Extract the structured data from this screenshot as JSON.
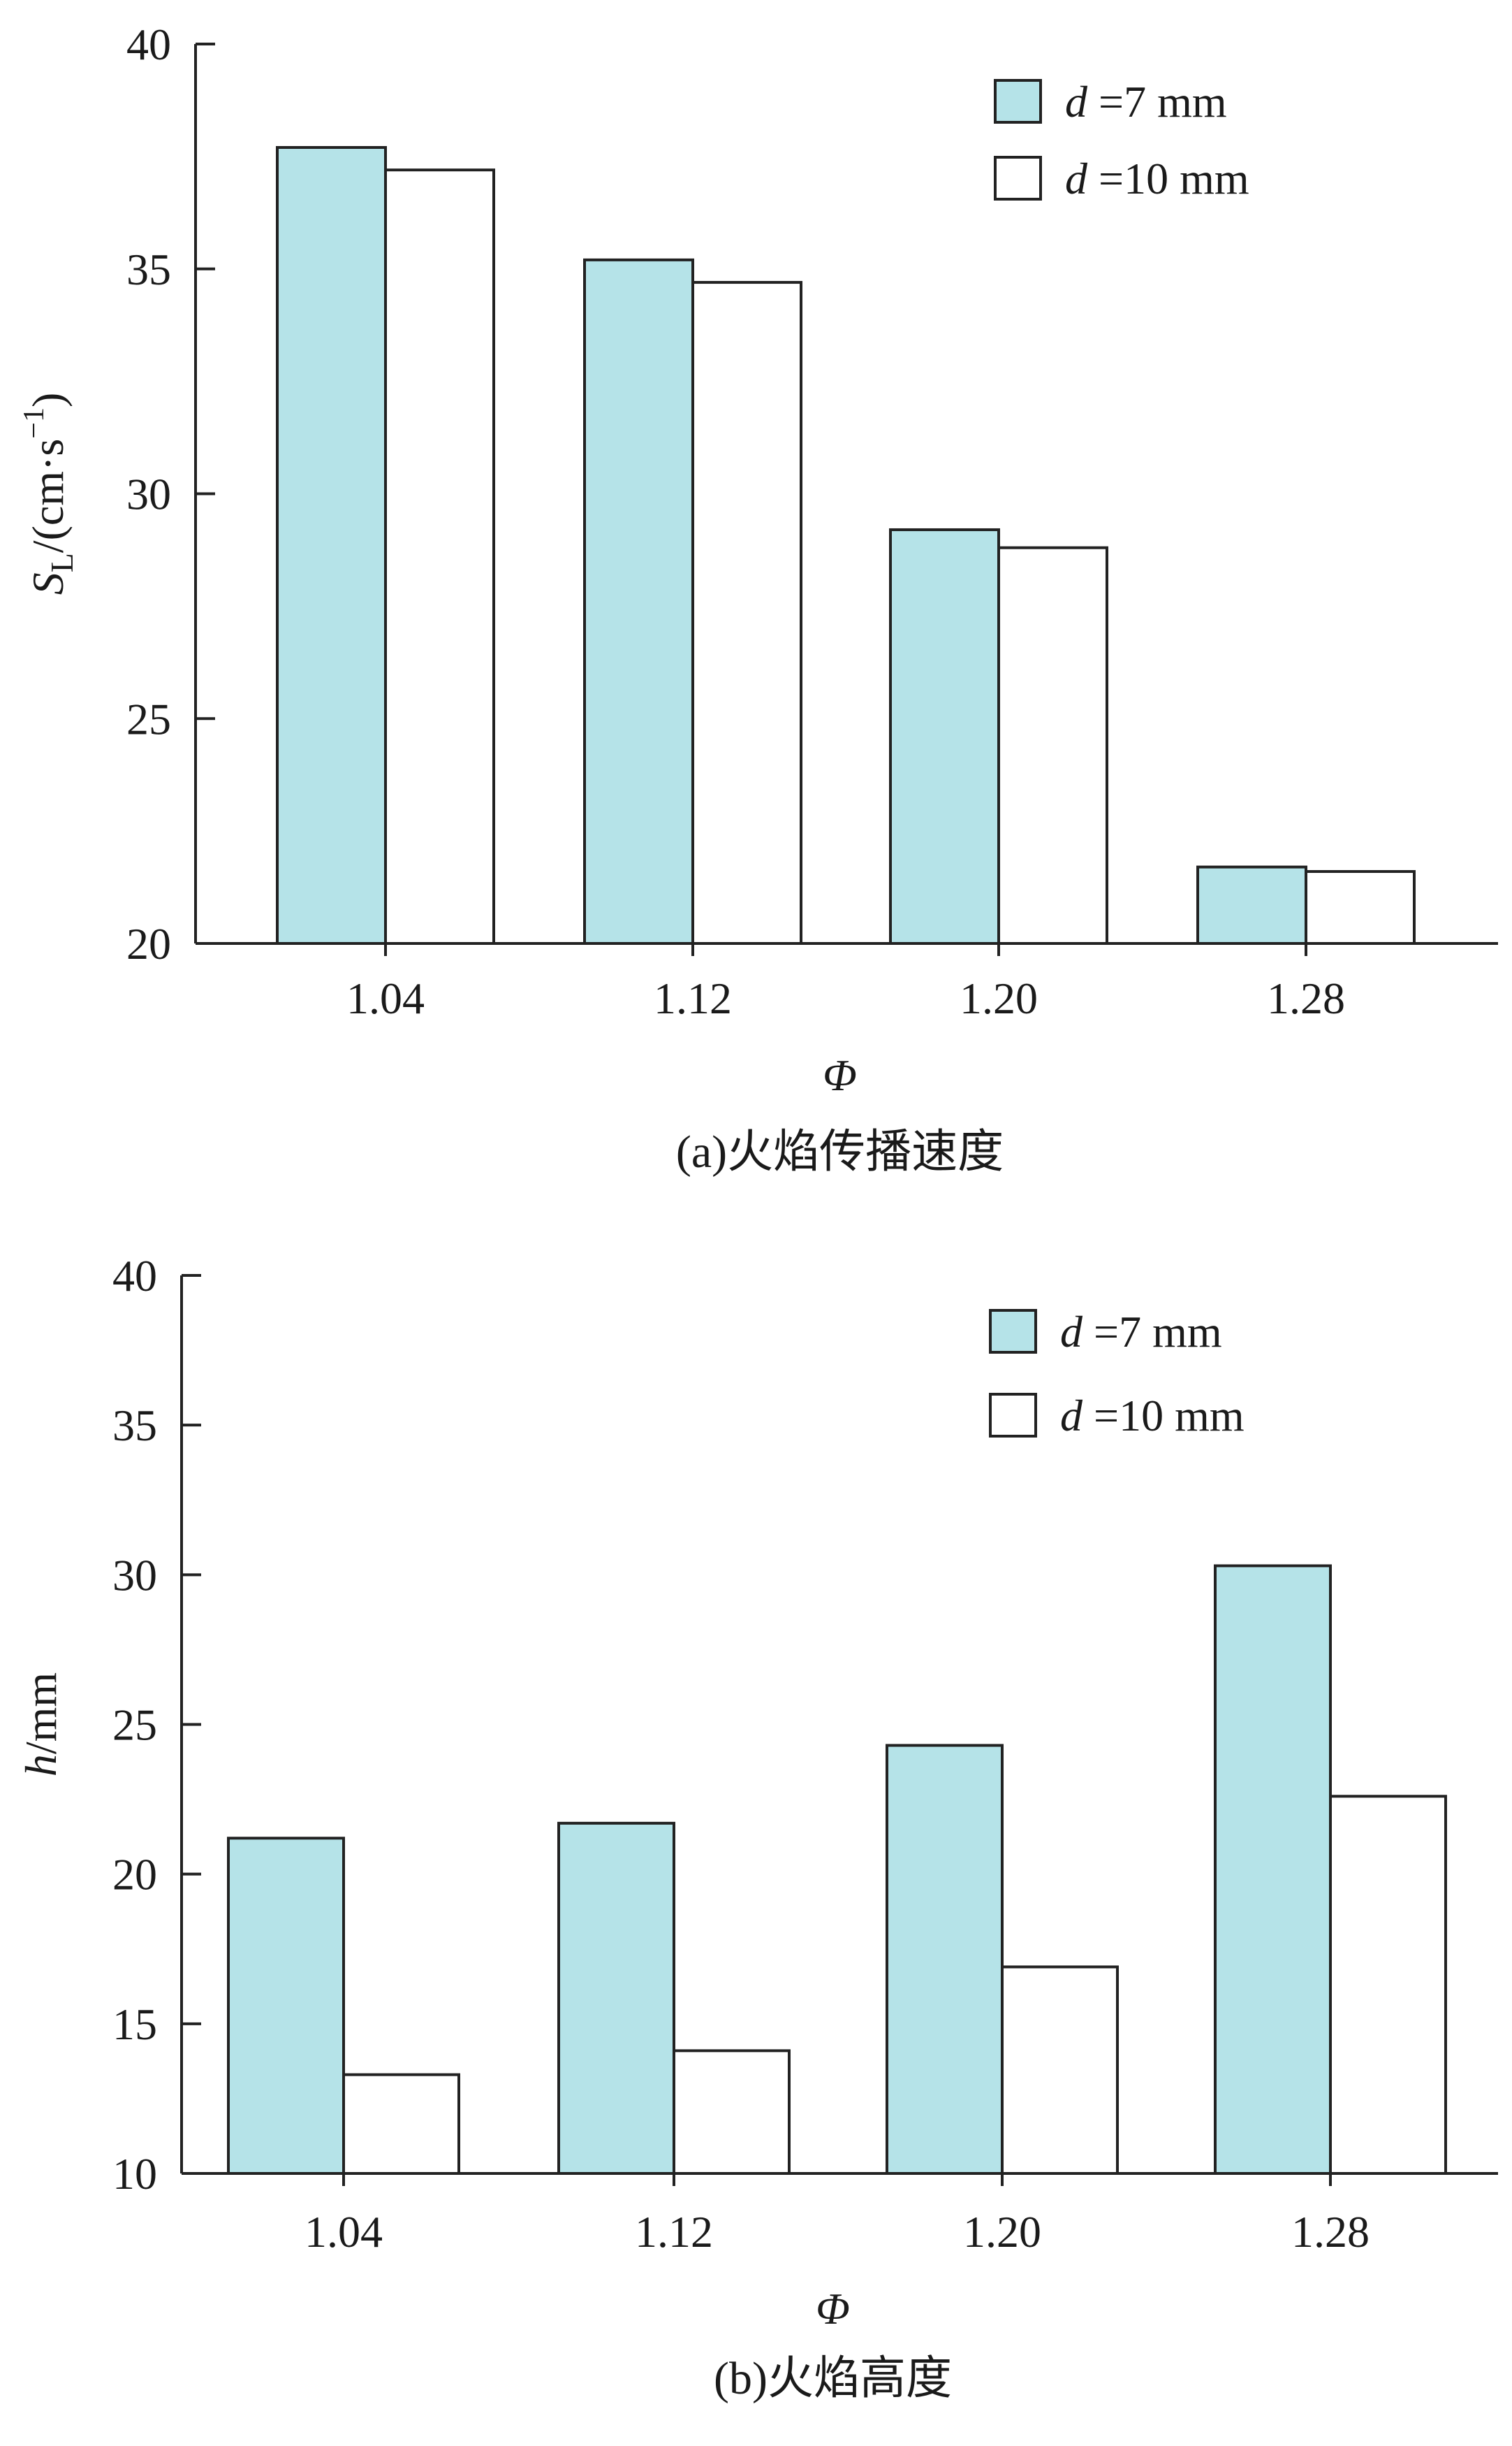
{
  "colors": {
    "d7": "#b5e3e8",
    "d10": "#ffffff",
    "stroke": "#222222"
  },
  "chart_data": [
    {
      "type": "bar",
      "categories": [
        "1.04",
        "1.12",
        "1.20",
        "1.28"
      ],
      "series": [
        {
          "name": "d =7 mm",
          "name_var": "d",
          "name_rest": "=7 mm",
          "values": [
            37.7,
            35.2,
            29.2,
            21.7
          ]
        },
        {
          "name": "d =10 mm",
          "name_var": "d",
          "name_rest": "=10 mm",
          "values": [
            37.2,
            34.7,
            28.8,
            21.6
          ]
        }
      ],
      "ylim": [
        20,
        40
      ],
      "yticks": [
        "20",
        "25",
        "30",
        "35",
        "40"
      ],
      "xlabel": "Φ",
      "ylabel": "SL/(cm·s−1)",
      "ylabel_main": "S",
      "ylabel_sub": "L",
      "ylabel_rest": "/(cm·s",
      "ylabel_sup": "−1",
      "ylabel_close": ")",
      "caption": "(a)火焰传播速度",
      "legend": "top-right"
    },
    {
      "type": "bar",
      "categories": [
        "1.04",
        "1.12",
        "1.20",
        "1.28"
      ],
      "series": [
        {
          "name": "d =7 mm",
          "name_var": "d",
          "name_rest": "=7 mm",
          "values": [
            21.2,
            21.7,
            24.3,
            30.3
          ]
        },
        {
          "name": "d =10 mm",
          "name_var": "d",
          "name_rest": "=10 mm",
          "values": [
            13.3,
            14.1,
            16.9,
            22.6
          ]
        }
      ],
      "ylim": [
        10,
        40
      ],
      "yticks": [
        "10",
        "15",
        "20",
        "25",
        "30",
        "35",
        "40"
      ],
      "xlabel": "Φ",
      "ylabel": "h/mm",
      "ylabel_var": "h",
      "ylabel_rest": "/mm",
      "caption": "(b)火焰高度",
      "legend": "top-right"
    }
  ]
}
